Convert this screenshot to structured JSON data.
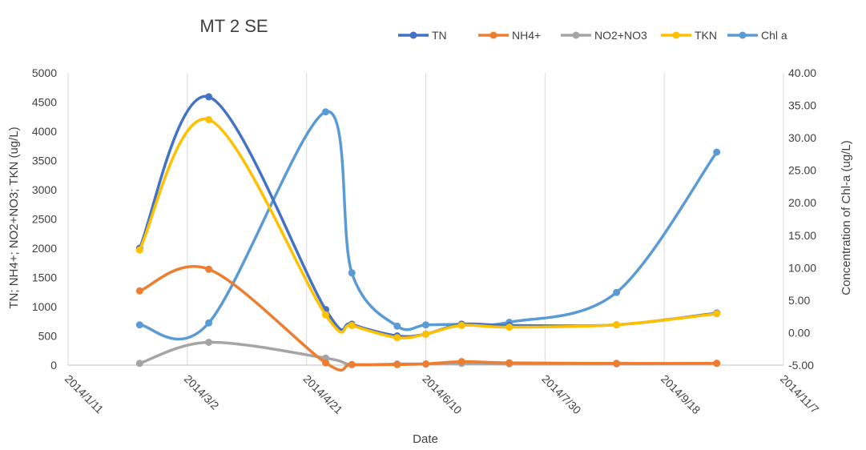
{
  "chart_data": {
    "type": "line",
    "title": "MT 2 SE",
    "xlabel": "Date",
    "ylabel_left": "TN; NH4+; NO2+NO3; TKN (ug/L)",
    "ylabel_right": "Concentration of Chl-a (ug/L)",
    "x_ticks": [
      "2014/1/11",
      "2014/3/2",
      "2014/4/21",
      "2014/6/10",
      "2014/7/30",
      "2014/9/18",
      "2014/11/7"
    ],
    "xlim": [
      "2014/1/11",
      "2014/11/7"
    ],
    "ylim_left": [
      0,
      5000
    ],
    "y_ticks_left": [
      "0",
      "500",
      "1000",
      "1500",
      "2000",
      "2500",
      "3000",
      "3500",
      "4000",
      "4500",
      "5000"
    ],
    "ylim_right": [
      -5,
      40
    ],
    "y_ticks_right": [
      "-5.00",
      "0.00",
      "5.00",
      "10.00",
      "15.00",
      "20.00",
      "25.00",
      "30.00",
      "35.00",
      "40.00"
    ],
    "legend_position": "top-right",
    "grid": "vertical",
    "series": [
      {
        "name": "TN",
        "axis": "left",
        "color": "#4472C4",
        "points": [
          [
            "2014/2/10",
            2000
          ],
          [
            "2014/3/11",
            4590
          ],
          [
            "2014/4/29",
            950
          ],
          [
            "2014/5/10",
            700
          ],
          [
            "2014/5/29",
            500
          ],
          [
            "2014/6/10",
            530
          ],
          [
            "2014/6/25",
            700
          ],
          [
            "2014/7/15",
            680
          ],
          [
            "2014/8/29",
            690
          ],
          [
            "2014/10/10",
            890
          ]
        ]
      },
      {
        "name": "NH4+",
        "axis": "left",
        "color": "#ED7D31",
        "points": [
          [
            "2014/2/10",
            1270
          ],
          [
            "2014/3/11",
            1640
          ],
          [
            "2014/4/29",
            40
          ],
          [
            "2014/5/10",
            10
          ],
          [
            "2014/5/29",
            10
          ],
          [
            "2014/6/10",
            20
          ],
          [
            "2014/6/25",
            60
          ],
          [
            "2014/7/15",
            40
          ],
          [
            "2014/8/29",
            30
          ],
          [
            "2014/10/10",
            30
          ]
        ]
      },
      {
        "name": "NO2+NO3",
        "axis": "left",
        "color": "#A5A5A5",
        "points": [
          [
            "2014/2/10",
            30
          ],
          [
            "2014/3/11",
            390
          ],
          [
            "2014/4/29",
            120
          ],
          [
            "2014/5/10",
            10
          ],
          [
            "2014/5/29",
            20
          ],
          [
            "2014/6/10",
            20
          ],
          [
            "2014/6/25",
            30
          ],
          [
            "2014/7/15",
            20
          ],
          [
            "2014/8/29",
            20
          ],
          [
            "2014/10/10",
            30
          ]
        ]
      },
      {
        "name": "TKN",
        "axis": "left",
        "color": "#FFC000",
        "points": [
          [
            "2014/2/10",
            1970
          ],
          [
            "2014/3/11",
            4200
          ],
          [
            "2014/4/29",
            860
          ],
          [
            "2014/5/10",
            680
          ],
          [
            "2014/5/29",
            470
          ],
          [
            "2014/6/10",
            530
          ],
          [
            "2014/6/25",
            680
          ],
          [
            "2014/7/15",
            650
          ],
          [
            "2014/8/29",
            690
          ],
          [
            "2014/10/10",
            880
          ]
        ]
      },
      {
        "name": "Chl a",
        "axis": "right",
        "color": "#5B9BD5",
        "points": [
          [
            "2014/2/10",
            1.2
          ],
          [
            "2014/3/11",
            1.5
          ],
          [
            "2014/4/29",
            34.0
          ],
          [
            "2014/5/10",
            9.2
          ],
          [
            "2014/5/29",
            1.0
          ],
          [
            "2014/6/10",
            1.2
          ],
          [
            "2014/6/25",
            1.3
          ],
          [
            "2014/7/15",
            1.6
          ],
          [
            "2014/8/29",
            6.2
          ],
          [
            "2014/10/10",
            27.8
          ]
        ]
      }
    ]
  }
}
